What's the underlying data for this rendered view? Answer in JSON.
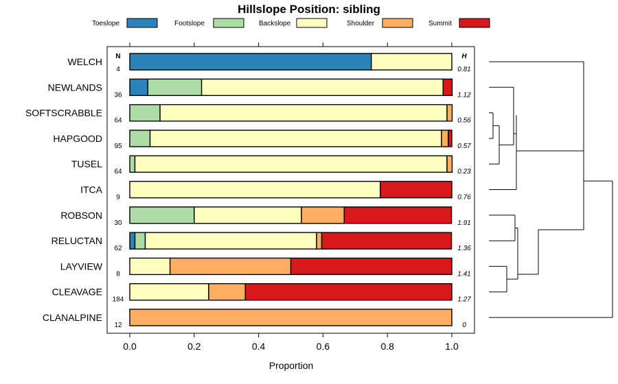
{
  "chart_data": {
    "type": "bar",
    "orientation": "horizontal",
    "stacked": true,
    "title": "Hillslope Position: sibling",
    "xlabel": "Proportion",
    "xlim": [
      0,
      1
    ],
    "xticks": [
      0.0,
      0.2,
      0.4,
      0.6,
      0.8,
      1.0
    ],
    "xtick_labels": [
      "0.0",
      "0.2",
      "0.4",
      "0.6",
      "0.8",
      "1.0"
    ],
    "legend_position": "top",
    "n_header": "N",
    "h_header": "H",
    "categories": [
      "WELCH",
      "NEWLANDS",
      "SOFTSCRABBLE",
      "HAPGOOD",
      "TUSEL",
      "ITCA",
      "ROBSON",
      "RELUCTAN",
      "LAYVIEW",
      "CLEAVAGE",
      "CLANALPINE"
    ],
    "n": [
      "4",
      "36",
      "64",
      "95",
      "64",
      "9",
      "30",
      "62",
      "8",
      "184",
      "12"
    ],
    "h": [
      "0.81",
      "1.12",
      "0.56",
      "0.57",
      "0.23",
      "0.76",
      "1.91",
      "1.36",
      "1.41",
      "1.27",
      "0"
    ],
    "series": [
      {
        "name": "Toeslope",
        "color": "#2b83ba",
        "values": [
          0.75,
          0.056,
          0,
          0,
          0,
          0,
          0,
          0.016,
          0,
          0,
          0
        ]
      },
      {
        "name": "Footslope",
        "color": "#abdda4",
        "values": [
          0,
          0.167,
          0.094,
          0.063,
          0.016,
          0,
          0.2,
          0.032,
          0,
          0,
          0
        ]
      },
      {
        "name": "Backslope",
        "color": "#ffffbf",
        "values": [
          0.25,
          0.75,
          0.891,
          0.905,
          0.969,
          0.778,
          0.333,
          0.532,
          0.125,
          0.245,
          0
        ]
      },
      {
        "name": "Shoulder",
        "color": "#fdae61",
        "values": [
          0,
          0,
          0.016,
          0.021,
          0.016,
          0,
          0.133,
          0.016,
          0.375,
          0.114,
          1.0
        ]
      },
      {
        "name": "Summit",
        "color": "#d7191c",
        "values": [
          0,
          0.028,
          0,
          0.011,
          0,
          0.222,
          0.333,
          0.403,
          0.5,
          0.641,
          0
        ]
      }
    ]
  }
}
